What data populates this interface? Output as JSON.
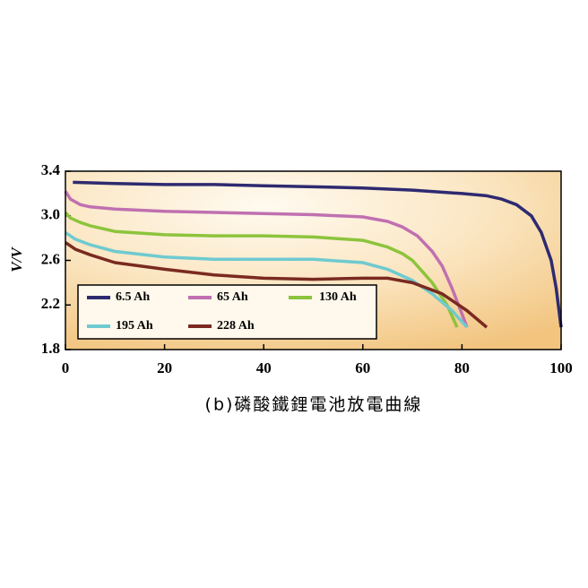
{
  "chart_data": {
    "type": "line",
    "title": "(b)磷酸鐵鋰電池放電曲線",
    "y_label": "V/V",
    "xlim": [
      0,
      100
    ],
    "xticks": [
      0,
      20,
      40,
      60,
      80,
      100
    ],
    "ylim": [
      1.8,
      3.4
    ],
    "yticks": [
      1.8,
      2.2,
      2.6,
      {
        "value": 3,
        "label": "3.0"
      },
      3.4
    ],
    "legend": "bottom-left",
    "series": [
      {
        "name": "6.5 Ah",
        "color": "#2e2a70",
        "x": [
          1.5,
          10,
          20,
          30,
          40,
          50,
          60,
          70,
          80,
          85,
          88,
          91,
          94,
          96,
          98,
          99,
          100
        ],
        "values": [
          3.3,
          3.29,
          3.28,
          3.28,
          3.27,
          3.26,
          3.25,
          3.23,
          3.2,
          3.18,
          3.15,
          3.1,
          3.0,
          2.85,
          2.6,
          2.35,
          2.0
        ]
      },
      {
        "name": "65 Ah",
        "color": "#c070b0",
        "x": [
          0,
          1,
          3,
          5,
          10,
          20,
          30,
          40,
          50,
          60,
          65,
          68,
          71,
          74,
          76,
          78,
          80,
          81
        ],
        "values": [
          3.22,
          3.15,
          3.1,
          3.08,
          3.06,
          3.04,
          3.03,
          3.02,
          3.01,
          2.99,
          2.95,
          2.9,
          2.82,
          2.68,
          2.55,
          2.35,
          2.12,
          2.0
        ]
      },
      {
        "name": "130 Ah",
        "color": "#8cc43c",
        "x": [
          0,
          1,
          3,
          5,
          10,
          20,
          30,
          40,
          50,
          60,
          65,
          68,
          70,
          72,
          74,
          77,
          79
        ],
        "values": [
          3.03,
          2.98,
          2.94,
          2.91,
          2.86,
          2.83,
          2.82,
          2.82,
          2.81,
          2.78,
          2.72,
          2.66,
          2.6,
          2.5,
          2.4,
          2.2,
          2.0
        ]
      },
      {
        "name": "195 Ah",
        "color": "#6fcad0",
        "x": [
          0,
          2,
          5,
          10,
          20,
          30,
          40,
          50,
          60,
          65,
          70,
          74,
          78,
          81
        ],
        "values": [
          2.85,
          2.79,
          2.74,
          2.68,
          2.63,
          2.61,
          2.61,
          2.61,
          2.58,
          2.52,
          2.42,
          2.3,
          2.15,
          2.0
        ]
      },
      {
        "name": "228 Ah",
        "color": "#7a2a20",
        "x": [
          0,
          2,
          5,
          10,
          20,
          30,
          40,
          50,
          60,
          65,
          70,
          76,
          81,
          85
        ],
        "values": [
          2.76,
          2.7,
          2.65,
          2.58,
          2.52,
          2.47,
          2.44,
          2.43,
          2.44,
          2.44,
          2.4,
          2.3,
          2.15,
          2.0
        ]
      }
    ]
  }
}
